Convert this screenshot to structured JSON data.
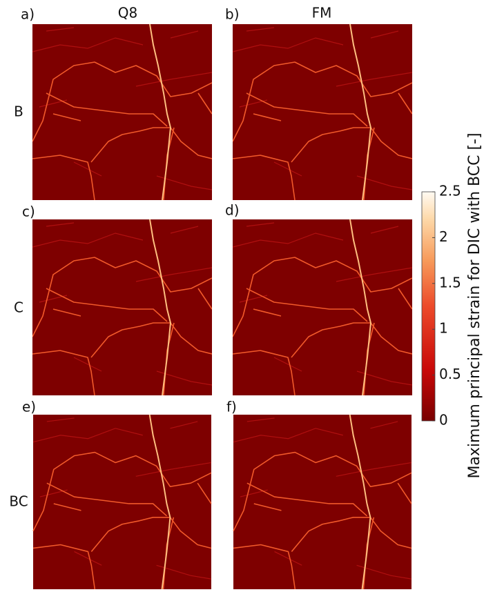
{
  "columns": [
    "Q8",
    "FM"
  ],
  "rows": [
    "B",
    "C",
    "BC"
  ],
  "panels": [
    {
      "label": "a)"
    },
    {
      "label": "b)"
    },
    {
      "label": "c)"
    },
    {
      "label": "d)"
    },
    {
      "label": "e)"
    },
    {
      "label": "f)"
    }
  ],
  "colorbar": {
    "label": "Maximum principal strain for DIC with BCC [-]",
    "lim": [
      0,
      2.5
    ],
    "ticks": [
      0,
      0.5,
      1,
      1.5,
      2,
      2.5
    ]
  }
}
